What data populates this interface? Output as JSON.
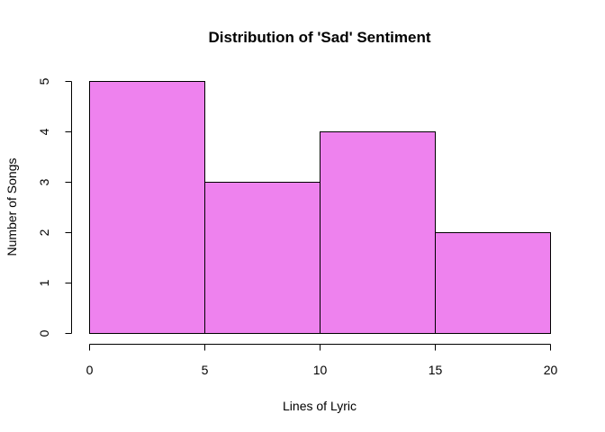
{
  "chart_data": {
    "type": "bar",
    "histogram": true,
    "title": "Distribution of 'Sad' Sentiment",
    "xlabel": "Lines of Lyric",
    "ylabel": "Number of Songs",
    "bins": [
      {
        "start": 0,
        "end": 5,
        "value": 5
      },
      {
        "start": 5,
        "end": 10,
        "value": 3
      },
      {
        "start": 10,
        "end": 15,
        "value": 4
      },
      {
        "start": 15,
        "end": 20,
        "value": 2
      }
    ],
    "xlim": [
      0,
      20
    ],
    "ylim": [
      0,
      5
    ],
    "xticks": [
      0,
      5,
      10,
      15,
      20
    ],
    "yticks": [
      0,
      1,
      2,
      3,
      4,
      5
    ],
    "bar_color": "#EE82EE",
    "grid": false,
    "legend": "none"
  }
}
